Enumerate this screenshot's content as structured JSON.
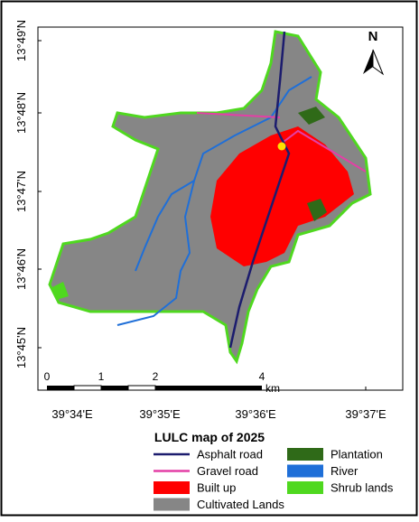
{
  "map": {
    "north": "N",
    "lat_labels": [
      "13°49'N",
      "13°48'N",
      "13°47'N",
      "13°46'N",
      "13°45'N"
    ],
    "lon_labels": [
      "39°34'E",
      "39°35'E",
      "39°36'E",
      "39°37'E"
    ],
    "scale_labels": [
      "0",
      "1",
      "2",
      "4"
    ],
    "scale_unit": "km"
  },
  "title": "LULC map of 2025",
  "legend": [
    {
      "name": "Asphalt road",
      "color": "#1c1c6e",
      "kind": "line"
    },
    {
      "name": "Gravel road",
      "color": "#e43fa6",
      "kind": "line"
    },
    {
      "name": "Built up",
      "color": "#ff0000",
      "kind": "box"
    },
    {
      "name": "Cultivated Lands",
      "color": "#868686",
      "kind": "box"
    },
    {
      "name": "Plantation",
      "color": "#2f6a18",
      "kind": "box"
    },
    {
      "name": "River",
      "color": "#1f6fd8",
      "kind": "box"
    },
    {
      "name": "Shrub lands",
      "color": "#4fd81f",
      "kind": "box"
    }
  ]
}
